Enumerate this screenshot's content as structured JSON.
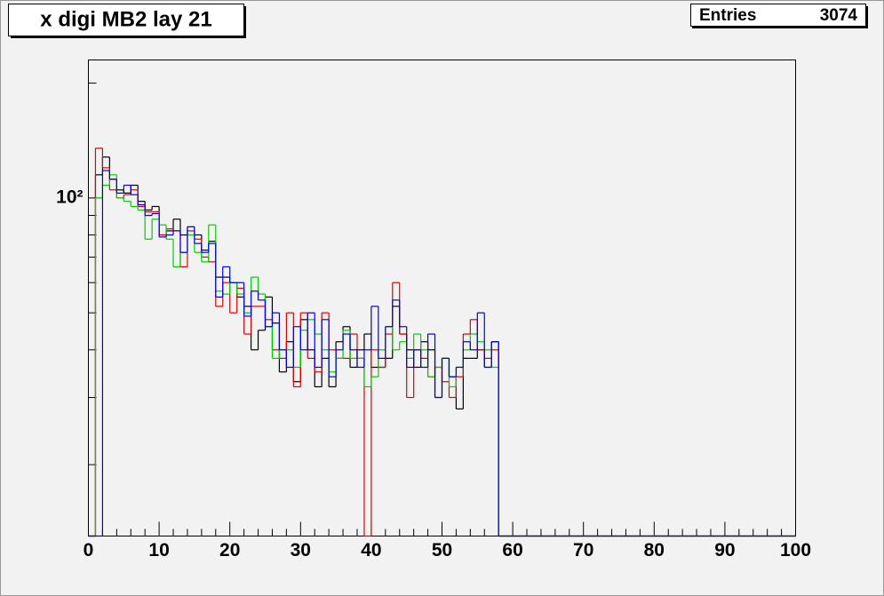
{
  "chart_data": {
    "type": "histogram",
    "title": "x digi MB2 lay 21",
    "stats": {
      "label": "Entries",
      "value": 3074
    },
    "log_y": true,
    "bins": [
      0,
      1,
      2,
      3,
      4,
      5,
      6,
      7,
      8,
      9,
      10,
      11,
      12,
      13,
      14,
      15,
      16,
      17,
      18,
      19,
      20,
      21,
      22,
      23,
      24,
      25,
      26,
      27,
      28,
      29,
      30,
      31,
      32,
      33,
      34,
      35,
      36,
      37,
      38,
      39,
      40,
      41,
      42,
      43,
      44,
      45,
      46,
      47,
      48,
      49,
      50,
      51,
      52,
      53,
      54,
      55,
      56,
      57,
      58,
      59,
      60,
      61,
      62,
      63,
      64,
      65,
      66,
      67,
      68,
      69,
      70,
      71,
      72,
      73,
      74,
      75,
      76,
      77,
      78,
      79,
      80,
      81,
      82,
      83,
      84,
      85,
      86,
      87,
      88,
      89,
      90,
      91,
      92,
      93,
      94,
      95,
      96,
      97,
      98,
      99,
      100
    ],
    "xlim": [
      0,
      100
    ],
    "xticks": [
      0,
      10,
      20,
      30,
      40,
      50,
      60,
      70,
      80,
      90,
      100
    ],
    "xminor_ticks": [
      2,
      4,
      6,
      8,
      12,
      14,
      16,
      18,
      22,
      24,
      26,
      28,
      32,
      34,
      36,
      38,
      42,
      44,
      46,
      48,
      52,
      54,
      56,
      58,
      62,
      64,
      66,
      68,
      72,
      74,
      76,
      78,
      82,
      84,
      86,
      88,
      92,
      94,
      96,
      98
    ],
    "ylim": [
      13,
      230
    ],
    "yticks": [
      {
        "value": 100,
        "label": "10²"
      }
    ],
    "yminor_ticks": [
      20,
      30,
      40,
      50,
      60,
      70,
      80,
      90,
      200
    ],
    "series": [
      {
        "color": "#000000",
        "values": [
          0,
          115,
          128,
          112,
          105,
          103,
          108,
          98,
          93,
          95,
          80,
          82,
          88,
          80,
          84,
          80,
          73,
          77,
          62,
          62,
          60,
          55,
          52,
          40,
          45,
          55,
          47,
          35,
          42,
          33,
          48,
          40,
          32,
          38,
          32,
          42,
          46,
          36,
          40,
          44,
          36,
          36,
          38,
          52,
          44,
          40,
          36,
          42,
          40,
          30,
          38,
          34,
          28,
          38,
          38,
          40,
          36,
          42,
          0,
          0,
          0,
          0,
          0,
          0,
          0,
          0,
          0,
          0,
          0,
          0,
          0,
          0,
          0,
          0,
          0,
          0,
          0,
          0,
          0,
          0,
          0,
          0,
          0,
          0,
          0,
          0,
          0,
          0,
          0,
          0,
          0,
          0,
          0,
          0,
          0,
          0,
          0,
          0,
          0,
          0
        ]
      },
      {
        "color": "#e00000",
        "values": [
          0,
          135,
          120,
          105,
          100,
          102,
          105,
          95,
          92,
          92,
          80,
          83,
          82,
          66,
          82,
          78,
          70,
          68,
          52,
          60,
          50,
          58,
          44,
          52,
          52,
          48,
          40,
          38,
          50,
          32,
          50,
          38,
          35,
          50,
          40,
          38,
          38,
          44,
          38,
          0,
          40,
          36,
          44,
          60,
          44,
          30,
          40,
          38,
          34,
          36,
          33,
          30,
          34,
          44,
          48,
          40,
          38,
          40,
          0,
          0,
          0,
          0,
          0,
          0,
          0,
          0,
          0,
          0,
          0,
          0,
          0,
          0,
          0,
          0,
          0,
          0,
          0,
          0,
          0,
          0,
          0,
          0,
          0,
          0,
          0,
          0,
          0,
          0,
          0,
          0,
          0,
          0,
          0,
          0,
          0,
          0,
          0,
          0,
          0,
          0
        ]
      },
      {
        "color": "#00cc00",
        "values": [
          0,
          100,
          108,
          115,
          100,
          98,
          95,
          93,
          78,
          88,
          85,
          78,
          66,
          72,
          80,
          72,
          68,
          85,
          57,
          56,
          60,
          56,
          50,
          62,
          56,
          46,
          38,
          40,
          40,
          36,
          45,
          48,
          44,
          40,
          35,
          38,
          45,
          38,
          38,
          32,
          34,
          40,
          46,
          40,
          42,
          38,
          44,
          40,
          34,
          36,
          38,
          32,
          36,
          40,
          44,
          42,
          40,
          36,
          0,
          0,
          0,
          0,
          0,
          0,
          0,
          0,
          0,
          0,
          0,
          0,
          0,
          0,
          0,
          0,
          0,
          0,
          0,
          0,
          0,
          0,
          0,
          0,
          0,
          0,
          0,
          0,
          0,
          0,
          0,
          0,
          0,
          0,
          0,
          0,
          0,
          0,
          0,
          0,
          0,
          0
        ]
      },
      {
        "color": "#0000e0",
        "values": [
          0,
          0,
          118,
          112,
          103,
          108,
          102,
          96,
          90,
          91,
          79,
          80,
          82,
          72,
          84,
          76,
          72,
          76,
          55,
          66,
          60,
          60,
          49,
          57,
          54,
          46,
          50,
          40,
          36,
          46,
          40,
          50,
          36,
          48,
          34,
          40,
          44,
          40,
          36,
          40,
          52,
          38,
          46,
          54,
          46,
          36,
          40,
          36,
          44,
          30,
          38,
          34,
          36,
          42,
          40,
          50,
          36,
          42,
          0,
          0,
          0,
          0,
          0,
          0,
          0,
          0,
          0,
          0,
          0,
          0,
          0,
          0,
          0,
          0,
          0,
          0,
          0,
          0,
          0,
          0,
          0,
          0,
          0,
          0,
          0,
          0,
          0,
          0,
          0,
          0,
          0,
          0,
          0,
          0,
          0,
          0,
          0,
          0,
          0,
          0
        ]
      }
    ]
  }
}
